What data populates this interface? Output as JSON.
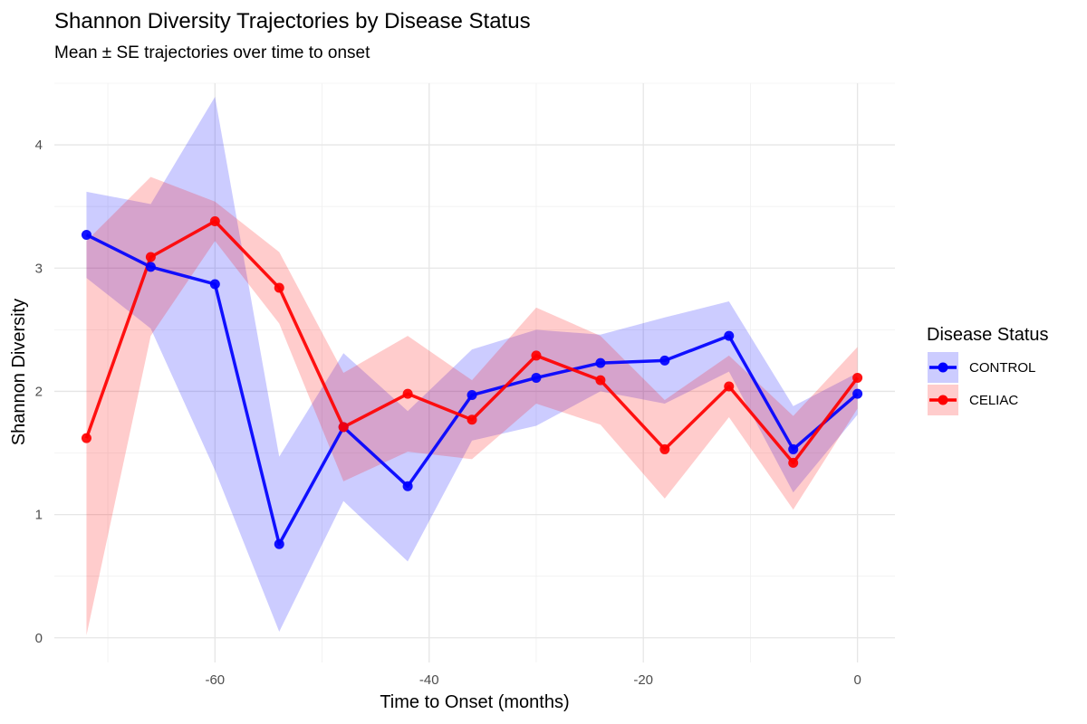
{
  "chart_data": {
    "type": "line",
    "title": "Shannon Diversity Trajectories by Disease Status",
    "subtitle": "Mean ± SE trajectories over time to onset",
    "xlabel": "Time to Onset (months)",
    "ylabel": "Shannon Diversity",
    "xlim": [
      -75,
      3.5
    ],
    "ylim": [
      -0.2,
      4.5
    ],
    "x_ticks": [
      -60,
      -40,
      -20,
      0
    ],
    "y_ticks": [
      0,
      1,
      2,
      3,
      4
    ],
    "grid": true,
    "legend": {
      "title": "Disease Status",
      "position": "right"
    },
    "x": [
      -72,
      -66,
      -60,
      -54,
      -48,
      -42,
      -36,
      -30,
      -24,
      -18,
      -12,
      -6,
      0
    ],
    "series": [
      {
        "name": "CONTROL",
        "color": "#0000ff",
        "values": [
          3.27,
          3.01,
          2.87,
          0.76,
          1.71,
          1.23,
          1.97,
          2.11,
          2.23,
          2.25,
          2.45,
          1.53,
          1.98
        ],
        "lower": [
          2.92,
          2.51,
          1.36,
          0.05,
          1.11,
          0.62,
          1.6,
          1.72,
          2.0,
          1.9,
          2.16,
          1.18,
          1.81
        ],
        "upper": [
          3.62,
          3.52,
          4.39,
          1.47,
          2.31,
          1.84,
          2.34,
          2.5,
          2.46,
          2.6,
          2.73,
          1.88,
          2.15
        ]
      },
      {
        "name": "CELIAC",
        "color": "#ff0000",
        "values": [
          1.62,
          3.09,
          3.38,
          2.84,
          1.71,
          1.98,
          1.77,
          2.29,
          2.09,
          1.53,
          2.04,
          1.42,
          2.11
        ],
        "lower": [
          0.02,
          2.45,
          3.22,
          2.55,
          1.27,
          1.51,
          1.45,
          1.9,
          1.73,
          1.13,
          1.79,
          1.04,
          1.86
        ],
        "upper": [
          3.22,
          3.74,
          3.54,
          3.13,
          2.15,
          2.45,
          2.09,
          2.68,
          2.45,
          1.93,
          2.29,
          1.8,
          2.36
        ]
      }
    ]
  }
}
